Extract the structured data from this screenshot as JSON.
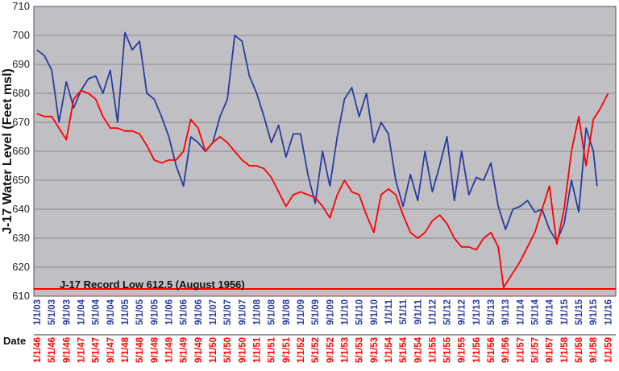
{
  "chart_data": {
    "type": "line",
    "title": "",
    "ylabel": "J-17 Water Level (Feet msl)",
    "xlabel": "Date",
    "ylim": [
      610,
      710
    ],
    "yticks": [
      610,
      620,
      630,
      640,
      650,
      660,
      670,
      680,
      690,
      700,
      710
    ],
    "grid": true,
    "background": "#c0c0c4",
    "annotation": {
      "text": "J-17 Record Low 612.5 (August 1956)",
      "value": 612.5,
      "color": "#ff0000"
    },
    "blue_axis_labels": [
      "1/1/03",
      "5/1/03",
      "9/1/03",
      "1/1/04",
      "5/1/04",
      "9/1/04",
      "1/1/05",
      "5/1/05",
      "9/1/05",
      "1/1/06",
      "5/1/06",
      "9/1/06",
      "1/1/07",
      "5/1/07",
      "9/1/07",
      "1/1/08",
      "5/1/08",
      "9/1/08",
      "1/1/09",
      "5/1/09",
      "9/1/09",
      "1/1/10",
      "5/1/10",
      "9/1/10",
      "1/1/11",
      "5/1/11",
      "9/1/11",
      "1/1/12",
      "5/1/12",
      "9/1/12",
      "1/1/13",
      "5/1/13",
      "9/1/13",
      "1/1/14",
      "5/1/14",
      "9/1/14",
      "1/1/15",
      "5/1/15",
      "9/1/15",
      "1/1/16"
    ],
    "red_axis_labels": [
      "1/1/46",
      "5/1/46",
      "9/1/46",
      "1/1/47",
      "5/1/47",
      "9/1/47",
      "1/1/48",
      "5/1/48",
      "9/1/48",
      "1/1/49",
      "5/1/49",
      "9/1/49",
      "1/1/50",
      "5/1/50",
      "9/1/50",
      "1/1/51",
      "5/1/51",
      "9/1/51",
      "1/1/52",
      "5/1/52",
      "9/1/52",
      "1/1/53",
      "5/1/53",
      "9/1/53",
      "1/1/54",
      "5/1/54",
      "9/1/54",
      "1/1/55",
      "5/1/55",
      "9/1/55",
      "1/1/56",
      "5/1/56",
      "9/1/56",
      "1/1/57",
      "5/1/57",
      "9/1/57",
      "1/1/58",
      "5/1/58",
      "9/1/58",
      "1/1/59"
    ],
    "series": [
      {
        "color": "#2b3aa0",
        "x": [
          "1/1/03",
          "3/1/03",
          "5/1/03",
          "7/1/03",
          "9/1/03",
          "11/1/03",
          "1/1/04",
          "3/1/04",
          "5/1/04",
          "7/1/04",
          "9/1/04",
          "11/1/04",
          "1/1/05",
          "3/1/05",
          "5/1/05",
          "7/1/05",
          "9/1/05",
          "11/1/05",
          "1/1/06",
          "3/1/06",
          "5/1/06",
          "7/1/06",
          "9/1/06",
          "11/1/06",
          "1/1/07",
          "3/1/07",
          "5/1/07",
          "7/1/07",
          "9/1/07",
          "11/1/07",
          "1/1/08",
          "3/1/08",
          "5/1/08",
          "7/1/08",
          "9/1/08",
          "11/1/08",
          "1/1/09",
          "3/1/09",
          "5/1/09",
          "7/1/09",
          "9/1/09",
          "11/1/09",
          "1/1/10",
          "3/1/10",
          "5/1/10",
          "7/1/10",
          "9/1/10",
          "11/1/10",
          "1/1/11",
          "3/1/11",
          "5/1/11",
          "7/1/11",
          "9/1/11",
          "11/1/11",
          "1/1/12",
          "3/1/12",
          "5/1/12",
          "7/1/12",
          "9/1/12",
          "11/1/12",
          "1/1/13",
          "3/1/13",
          "5/1/13",
          "7/1/13",
          "9/1/13",
          "11/1/13",
          "1/1/14",
          "3/1/14",
          "5/1/14",
          "7/1/14",
          "9/1/14",
          "11/1/14",
          "1/1/15",
          "3/1/15",
          "5/1/15",
          "7/1/15",
          "9/1/15",
          "10/1/15"
        ],
        "values": [
          695,
          693,
          688,
          670,
          684,
          675,
          681,
          685,
          686,
          680,
          688,
          670,
          701,
          695,
          698,
          680,
          678,
          672,
          665,
          655,
          648,
          665,
          663,
          660,
          663,
          672,
          678,
          700,
          698,
          686,
          680,
          672,
          663,
          669,
          658,
          666,
          666,
          652,
          642,
          660,
          648,
          665,
          678,
          682,
          672,
          680,
          663,
          670,
          666,
          650,
          641,
          652,
          643,
          660,
          646,
          655,
          665,
          643,
          660,
          645,
          651,
          650,
          656,
          641,
          633,
          640,
          641,
          643,
          639,
          640,
          633,
          629,
          635,
          650,
          639,
          668,
          660,
          648
        ]
      },
      {
        "color": "#ff0000",
        "x": [
          "1/1/46",
          "3/1/46",
          "5/1/46",
          "7/1/46",
          "9/1/46",
          "11/1/46",
          "1/1/47",
          "3/1/47",
          "5/1/47",
          "7/1/47",
          "9/1/47",
          "11/1/47",
          "1/1/48",
          "3/1/48",
          "5/1/48",
          "7/1/48",
          "9/1/48",
          "11/1/48",
          "1/1/49",
          "3/1/49",
          "5/1/49",
          "7/1/49",
          "9/1/49",
          "11/1/49",
          "1/1/50",
          "3/1/50",
          "5/1/50",
          "7/1/50",
          "9/1/50",
          "11/1/50",
          "1/1/51",
          "3/1/51",
          "5/1/51",
          "7/1/51",
          "9/1/51",
          "11/1/51",
          "1/1/52",
          "3/1/52",
          "5/1/52",
          "7/1/52",
          "9/1/52",
          "11/1/52",
          "1/1/53",
          "3/1/53",
          "5/1/53",
          "7/1/53",
          "9/1/53",
          "11/1/53",
          "1/1/54",
          "3/1/54",
          "5/1/54",
          "7/1/54",
          "9/1/54",
          "11/1/54",
          "1/1/55",
          "3/1/55",
          "5/1/55",
          "7/1/55",
          "9/1/55",
          "11/1/55",
          "1/1/56",
          "3/1/56",
          "5/1/56",
          "7/1/56",
          "8/15/56",
          "11/1/56",
          "1/1/57",
          "3/1/57",
          "5/1/57",
          "7/1/57",
          "9/1/57",
          "11/1/57",
          "1/1/58",
          "3/1/58",
          "5/1/58",
          "7/1/58",
          "9/1/58",
          "11/1/58",
          "1/1/59"
        ],
        "values": [
          673,
          672,
          672,
          668,
          664,
          678,
          681,
          680,
          678,
          672,
          668,
          668,
          667,
          667,
          666,
          662,
          657,
          656,
          657,
          657,
          660,
          671,
          668,
          660,
          663,
          665,
          663,
          660,
          657,
          655,
          655,
          654,
          651,
          646,
          641,
          645,
          646,
          645,
          644,
          641,
          637,
          645,
          650,
          646,
          645,
          638,
          632,
          645,
          647,
          645,
          638,
          632,
          630,
          632,
          636,
          638,
          635,
          630,
          627,
          627,
          626,
          630,
          632,
          627,
          613,
          618,
          622,
          627,
          632,
          640,
          648,
          628,
          640,
          660,
          672,
          655,
          671,
          675,
          680
        ]
      }
    ]
  }
}
